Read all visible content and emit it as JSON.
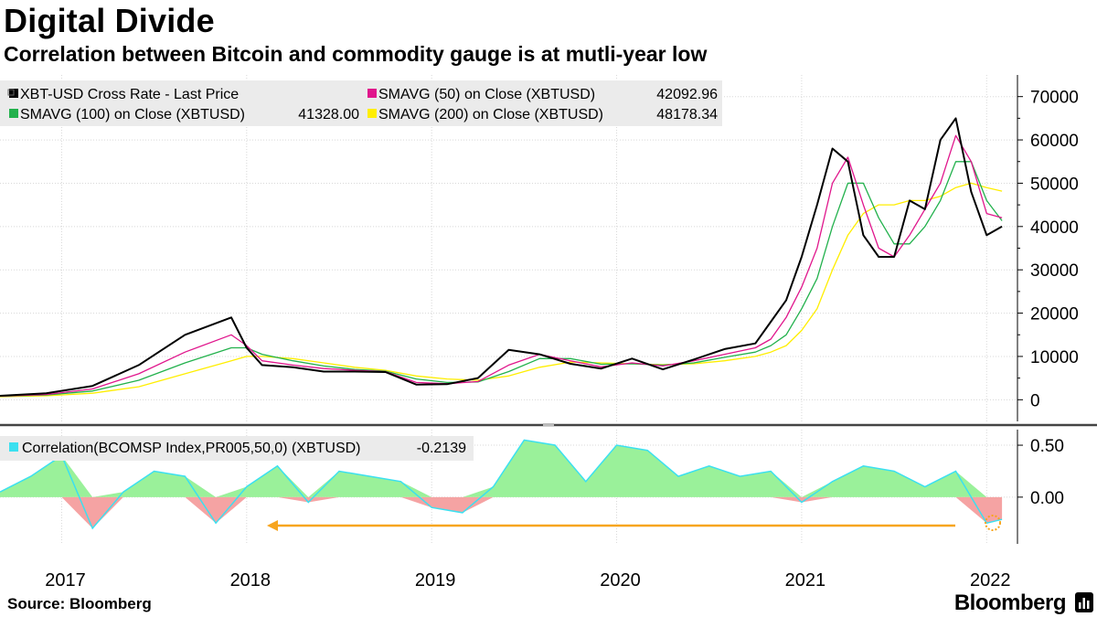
{
  "header": {
    "title": "Digital Divide",
    "subtitle": "Correlation between Bitcoin and commodity gauge is at mutli-year low"
  },
  "footer": {
    "source": "Source:  Bloomberg",
    "brand": "Bloomberg"
  },
  "legend_top": [
    {
      "label": "XBT-USD Cross Rate - Last Price",
      "color": "#000000",
      "value": ""
    },
    {
      "label": "SMAVG (50)  on Close (XBTUSD)",
      "color": "#e0168c",
      "value": "42092.96"
    },
    {
      "label": "SMAVG (100)  on Close (XBTUSD)",
      "color": "#22b14c",
      "value": "41328.00"
    },
    {
      "label": "SMAVG (200)  on Close (XBTUSD)",
      "color": "#ffee00",
      "value": "48178.34"
    }
  ],
  "legend_bottom": {
    "label": "Correlation(BCOMSP Index,PR005,50,0) (XBTUSD)",
    "color": "#3be0f0",
    "value": "-0.2139"
  },
  "chart_data": [
    {
      "type": "line",
      "x_ticks": [
        "2017",
        "2018",
        "2019",
        "2020",
        "2021",
        "2022"
      ],
      "xlim": [
        "2016-09",
        "2022-03"
      ],
      "ylim": [
        -5000,
        75000
      ],
      "y_ticks": [
        0,
        10000,
        20000,
        30000,
        40000,
        50000,
        60000,
        70000
      ],
      "grid": true,
      "legend": "top-left",
      "x": [
        "2016-09",
        "2016-12",
        "2017-03",
        "2017-06",
        "2017-09",
        "2017-12",
        "2018-01",
        "2018-02",
        "2018-04",
        "2018-06",
        "2018-08",
        "2018-10",
        "2018-12",
        "2019-02",
        "2019-04",
        "2019-06",
        "2019-08",
        "2019-10",
        "2019-12",
        "2020-02",
        "2020-04",
        "2020-06",
        "2020-08",
        "2020-10",
        "2020-11",
        "2020-12",
        "2021-01",
        "2021-02",
        "2021-03",
        "2021-04",
        "2021-05",
        "2021-06",
        "2021-07",
        "2021-08",
        "2021-09",
        "2021-10",
        "2021-11",
        "2021-12",
        "2022-01",
        "2022-02"
      ],
      "series": [
        {
          "name": "XBT-USD Cross Rate - Last Price",
          "color": "#000000",
          "values": [
            900,
            1500,
            3200,
            8000,
            15000,
            19000,
            12000,
            8000,
            7500,
            6500,
            6500,
            6400,
            3500,
            3600,
            5000,
            11500,
            10500,
            8300,
            7200,
            9500,
            7000,
            9300,
            11700,
            13000,
            18000,
            23000,
            33000,
            45000,
            58000,
            55000,
            38000,
            33000,
            33000,
            46000,
            44000,
            60000,
            65000,
            48000,
            38000,
            40000
          ]
        },
        {
          "name": "SMAVG (50)  on Close (XBTUSD)",
          "color": "#e0168c",
          "values": [
            850,
            1200,
            2500,
            6000,
            11000,
            15000,
            12500,
            9000,
            8000,
            7200,
            6800,
            6500,
            4000,
            3700,
            4200,
            8000,
            10500,
            9000,
            7600,
            8500,
            7800,
            9000,
            10500,
            12000,
            14000,
            19000,
            26000,
            35000,
            50000,
            56000,
            45000,
            35000,
            33000,
            38000,
            44000,
            50000,
            61000,
            55000,
            43000,
            42000
          ]
        },
        {
          "name": "SMAVG (100)  on Close (XBTUSD)",
          "color": "#22b14c",
          "values": [
            800,
            1100,
            2000,
            4500,
            8500,
            12000,
            12000,
            10500,
            9000,
            7800,
            7000,
            6600,
            4800,
            4000,
            4100,
            6500,
            9500,
            9500,
            8200,
            8300,
            8000,
            8500,
            9800,
            11000,
            12500,
            15000,
            21000,
            28000,
            40000,
            50000,
            50000,
            42000,
            36000,
            36000,
            40000,
            46000,
            55000,
            55000,
            46000,
            41328
          ]
        },
        {
          "name": "SMAVG (200)  on Close (XBTUSD)",
          "color": "#ffee00",
          "values": [
            700,
            900,
            1500,
            3000,
            6000,
            9000,
            10000,
            10000,
            9500,
            8500,
            7500,
            6800,
            5500,
            4800,
            4500,
            5500,
            7500,
            8700,
            8500,
            8300,
            8100,
            8300,
            9000,
            10000,
            11000,
            12500,
            16000,
            21000,
            30000,
            38000,
            43000,
            45000,
            45000,
            46000,
            46000,
            47000,
            49000,
            50000,
            49000,
            48178
          ]
        }
      ]
    },
    {
      "type": "area",
      "ylim": [
        -0.45,
        0.65
      ],
      "y_ticks": [
        0.5,
        0.0
      ],
      "y_tick_labels": [
        "0.50",
        "0.00"
      ],
      "x": [
        "2016-09",
        "2016-11",
        "2017-01",
        "2017-03",
        "2017-05",
        "2017-07",
        "2017-09",
        "2017-11",
        "2018-01",
        "2018-03",
        "2018-05",
        "2018-07",
        "2018-09",
        "2018-11",
        "2019-01",
        "2019-03",
        "2019-05",
        "2019-07",
        "2019-09",
        "2019-11",
        "2020-01",
        "2020-03",
        "2020-05",
        "2020-07",
        "2020-09",
        "2020-11",
        "2021-01",
        "2021-03",
        "2021-05",
        "2021-07",
        "2021-09",
        "2021-11",
        "2022-01",
        "2022-02"
      ],
      "series": [
        {
          "name": "Correlation(BCOMSP Index,PR005,50,0) (XBTUSD)",
          "color": "#3be0f0",
          "values": [
            0.05,
            0.2,
            0.4,
            -0.3,
            0.05,
            0.25,
            0.2,
            -0.25,
            0.1,
            0.3,
            -0.05,
            0.25,
            0.2,
            0.15,
            -0.1,
            -0.15,
            0.1,
            0.55,
            0.5,
            0.15,
            0.5,
            0.45,
            0.2,
            0.3,
            0.2,
            0.25,
            -0.05,
            0.15,
            0.3,
            0.25,
            0.1,
            0.25,
            -0.25,
            -0.2139
          ]
        }
      ]
    }
  ]
}
